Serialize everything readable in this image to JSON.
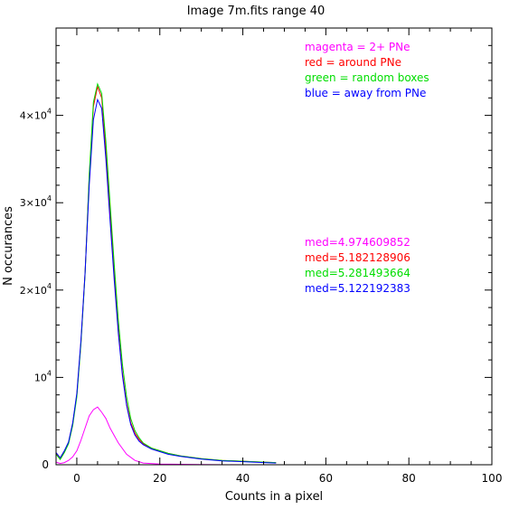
{
  "chart_data": {
    "type": "line",
    "title": "Image 7m.fits   range 40",
    "xlabel": "Counts in a pixel",
    "ylabel": "N occurances",
    "xlim": [
      -5,
      100
    ],
    "ylim": [
      0,
      50000
    ],
    "x_ticks": [
      0,
      20,
      40,
      60,
      80,
      100
    ],
    "y_ticks": [
      {
        "value": 10000,
        "base": "10",
        "exp": "4"
      },
      {
        "value": 20000,
        "base": "2×10",
        "exp": "4"
      },
      {
        "value": 30000,
        "base": "3×10",
        "exp": "4"
      },
      {
        "value": 40000,
        "base": "4×10",
        "exp": "4"
      }
    ],
    "zero_tick": "0",
    "legend": [
      {
        "text": "magenta = 2+ PNe",
        "color": "#ff00ff"
      },
      {
        "text": "red = around PNe",
        "color": "#ff0000"
      },
      {
        "text": "green = random boxes",
        "color": "#00dd00"
      },
      {
        "text": "blue = away from PNe",
        "color": "#0000ff"
      }
    ],
    "annotations": [
      {
        "text": "med=4.974609852",
        "color": "#ff00ff"
      },
      {
        "text": "med=5.182128906",
        "color": "#ff0000"
      },
      {
        "text": "med=5.281493664",
        "color": "#00dd00"
      },
      {
        "text": "med=5.122192383",
        "color": "#0000ff"
      }
    ],
    "series": [
      {
        "color": "#ff00ff",
        "x": [
          -5,
          -4,
          -3,
          -2,
          -1,
          0,
          1,
          2,
          3,
          4,
          5,
          6,
          7,
          8,
          10,
          12,
          14,
          16,
          20,
          30,
          40,
          50
        ],
        "y": [
          300,
          150,
          250,
          500,
          900,
          1600,
          2800,
          4200,
          5600,
          6300,
          6600,
          6000,
          5300,
          4200,
          2500,
          1200,
          500,
          200,
          80,
          20,
          5,
          0
        ]
      },
      {
        "color": "#ff0000",
        "x": [
          -5,
          -4,
          -3,
          -2,
          -1,
          0,
          1,
          2,
          3,
          4,
          5,
          6,
          7,
          8,
          9,
          10,
          11,
          12,
          13,
          14,
          15,
          16,
          18,
          20,
          22,
          25,
          30,
          35,
          40,
          45,
          48
        ],
        "y": [
          1300,
          700,
          1500,
          2500,
          4700,
          8000,
          14000,
          22000,
          33000,
          41000,
          43300,
          42000,
          36000,
          29000,
          22000,
          15500,
          10500,
          7000,
          4800,
          3600,
          2900,
          2400,
          1900,
          1600,
          1300,
          1000,
          700,
          500,
          400,
          300,
          250
        ]
      },
      {
        "color": "#00dd00",
        "x": [
          -5,
          -4,
          -3,
          -2,
          -1,
          0,
          1,
          2,
          3,
          4,
          5,
          6,
          7,
          8,
          9,
          10,
          11,
          12,
          13,
          14,
          15,
          16,
          18,
          20,
          22,
          25,
          30,
          35,
          40,
          45,
          48
        ],
        "y": [
          1200,
          600,
          1400,
          2400,
          4500,
          7800,
          13800,
          21800,
          33200,
          41500,
          43600,
          42500,
          37000,
          30000,
          23000,
          16500,
          11500,
          7800,
          5300,
          3900,
          3100,
          2500,
          1900,
          1600,
          1300,
          1000,
          700,
          500,
          400,
          300,
          250
        ]
      },
      {
        "color": "#0000ff",
        "x": [
          -5,
          -4,
          -3,
          -2,
          -1,
          0,
          1,
          2,
          3,
          4,
          5,
          6,
          7,
          8,
          9,
          10,
          11,
          12,
          13,
          14,
          15,
          16,
          18,
          20,
          22,
          25,
          30,
          35,
          40,
          45,
          48
        ],
        "y": [
          1400,
          800,
          1600,
          2600,
          4800,
          8200,
          14200,
          22000,
          32000,
          39500,
          41800,
          40800,
          35000,
          28000,
          21200,
          15000,
          10200,
          6800,
          4600,
          3400,
          2700,
          2300,
          1800,
          1500,
          1200,
          950,
          650,
          450,
          350,
          250,
          200
        ]
      }
    ]
  }
}
